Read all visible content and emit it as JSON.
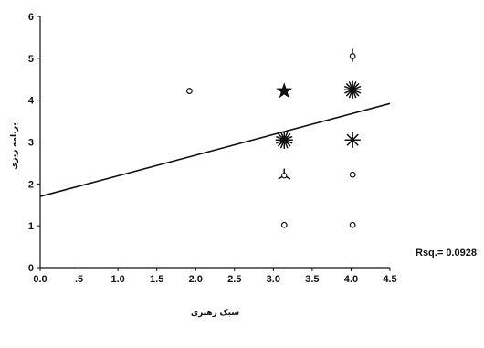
{
  "chart_data": {
    "type": "scatter",
    "title": "",
    "xlabel": "سبک رهبری",
    "ylabel": "برنامه ریزی",
    "xlim": [
      0,
      4.5
    ],
    "ylim": [
      0,
      6
    ],
    "xticks": [
      0.0,
      0.5,
      1.0,
      1.5,
      2.0,
      2.5,
      3.0,
      3.5,
      4.0,
      4.5
    ],
    "xtick_labels": [
      "0.0",
      ".5",
      "1.0",
      "1.5",
      "2.0",
      "2.5",
      "3.0",
      "3.5",
      "4.0",
      "4.5"
    ],
    "yticks": [
      0,
      1,
      2,
      3,
      4,
      5,
      6
    ],
    "ytick_labels": [
      "0",
      "1",
      "2",
      "3",
      "4",
      "5",
      "6"
    ],
    "grid": false,
    "points": [
      {
        "x": 1.92,
        "y": 4.22,
        "marker": "circle"
      },
      {
        "x": 3.14,
        "y": 4.22,
        "marker": "star5"
      },
      {
        "x": 4.02,
        "y": 4.25,
        "marker": "sunflower-many"
      },
      {
        "x": 3.14,
        "y": 3.05,
        "marker": "sunflower-many"
      },
      {
        "x": 4.02,
        "y": 3.05,
        "marker": "sunflower-few"
      },
      {
        "x": 3.14,
        "y": 2.2,
        "marker": "sunflower-3"
      },
      {
        "x": 4.02,
        "y": 2.22,
        "marker": "circle"
      },
      {
        "x": 4.02,
        "y": 5.05,
        "marker": "circle-tick"
      },
      {
        "x": 3.14,
        "y": 1.02,
        "marker": "circle"
      },
      {
        "x": 4.02,
        "y": 1.02,
        "marker": "circle"
      }
    ],
    "fit_line": {
      "x": [
        0,
        4.5
      ],
      "y": [
        1.7,
        3.92
      ]
    },
    "annotation": "Rsq.= 0.0928"
  }
}
